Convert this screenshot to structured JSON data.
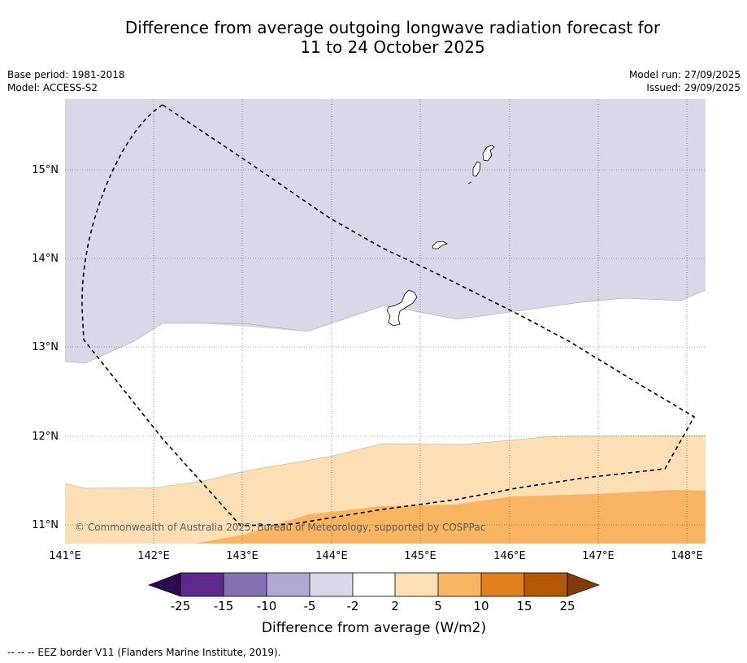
{
  "header": {
    "title_line1": "Difference from average outgoing longwave radiation forecast for",
    "title_line2": "11 to 24 October 2025",
    "base_period": "Base period: 1981-2018",
    "model": "Model: ACCESS-S2",
    "model_run": "Model run: 27/09/2025",
    "issued": "Issued: 29/09/2025"
  },
  "map": {
    "lat_labels": [
      "15°N",
      "14°N",
      "13°N",
      "12°N",
      "11°N"
    ],
    "lon_labels": [
      "141°E",
      "142°E",
      "143°E",
      "144°E",
      "145°E",
      "146°E",
      "147°E",
      "148°E"
    ],
    "copyright": "© Commonwealth of Australia 2025, Bureau of Meteorology, supported by COSPPac",
    "lon_range": [
      141.0,
      148.2
    ],
    "lat_range": [
      10.8,
      15.8
    ]
  },
  "colorbar": {
    "tick_labels": [
      "-25",
      "-15",
      "-10",
      "-5",
      "-2",
      "2",
      "5",
      "10",
      "15",
      "25"
    ],
    "colors": [
      "#2d0a4e",
      "#5b2a8c",
      "#8472b0",
      "#b1a9d3",
      "#d8d8e9",
      "#ffffff",
      "#fcdfb4",
      "#fab563",
      "#e0801b",
      "#b35806",
      "#7f3b08"
    ],
    "label": "Difference from average (W/m2)"
  },
  "footer": {
    "legend_text": "--  --  -- EEZ border V11 (Flanders Marine Institute, 2019)."
  }
}
